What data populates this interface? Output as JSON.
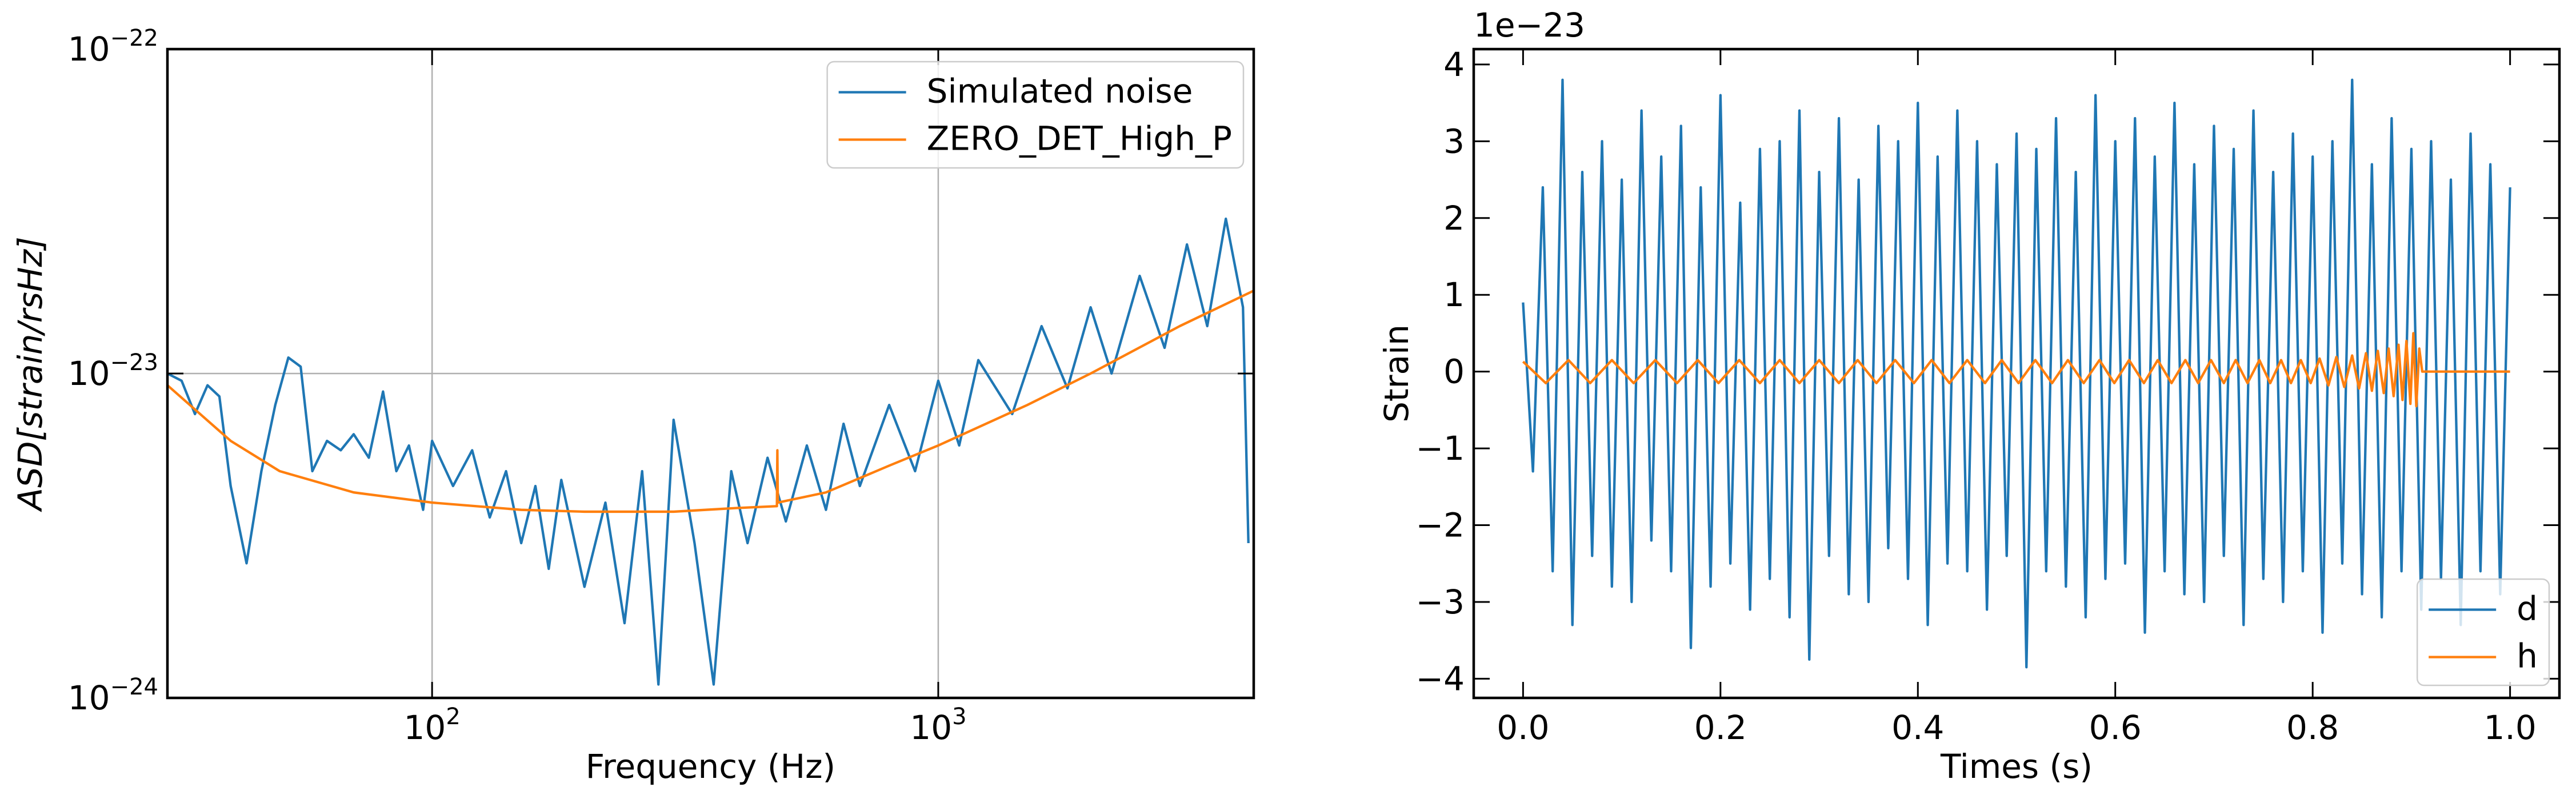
{
  "chart_data": [
    {
      "type": "line",
      "xscale": "log",
      "yscale": "log",
      "grid": true,
      "legend": "upper right",
      "xlabel": "Frequency (Hz)",
      "ylabel": "ASD[strain/rsHz]",
      "xlim": [
        30,
        4200
      ],
      "ylim": [
        1e-24,
        1e-22
      ],
      "xticks": [
        {
          "value": 100,
          "label": "10",
          "exponent": "2"
        },
        {
          "value": 1000,
          "label": "10",
          "exponent": "3"
        }
      ],
      "yticks": [
        {
          "value": 1e-24,
          "label": "10",
          "exponent": "−24"
        },
        {
          "value": 1e-23,
          "label": "10",
          "exponent": "−23"
        },
        {
          "value": 1e-22,
          "label": "10",
          "exponent": "−22"
        }
      ],
      "series": [
        {
          "name": "Simulated noise",
          "color": "#1f77b4",
          "x": [
            30,
            32,
            34,
            36,
            38,
            40,
            43,
            46,
            49,
            52,
            55,
            58,
            62,
            66,
            70,
            75,
            80,
            85,
            90,
            96,
            100,
            110,
            120,
            130,
            140,
            150,
            160,
            170,
            180,
            200,
            220,
            240,
            260,
            280,
            300,
            330,
            360,
            390,
            420,
            460,
            500,
            550,
            600,
            650,
            700,
            800,
            900,
            1000,
            1100,
            1200,
            1400,
            1600,
            1800,
            2000,
            2200,
            2500,
            2800,
            3100,
            3400,
            3700,
            4000,
            4100
          ],
          "values": [
            1e-23,
            9.5e-24,
            7.5e-24,
            9.2e-24,
            8.5e-24,
            4.5e-24,
            2.6e-24,
            5e-24,
            8e-24,
            1.12e-23,
            1.05e-23,
            5e-24,
            6.2e-24,
            5.8e-24,
            6.5e-24,
            5.5e-24,
            8.8e-24,
            5e-24,
            6e-24,
            3.8e-24,
            6.2e-24,
            4.5e-24,
            5.8e-24,
            3.6e-24,
            5e-24,
            3e-24,
            4.5e-24,
            2.5e-24,
            4.7e-24,
            2.2e-24,
            4e-24,
            1.7e-24,
            5e-24,
            1.1e-24,
            7.2e-24,
            3e-24,
            1.1e-24,
            5e-24,
            3e-24,
            5.5e-24,
            3.5e-24,
            6e-24,
            3.8e-24,
            7e-24,
            4.5e-24,
            8e-24,
            5e-24,
            9.5e-24,
            6e-24,
            1.1e-23,
            7.5e-24,
            1.4e-23,
            9e-24,
            1.6e-23,
            1e-23,
            2e-23,
            1.2e-23,
            2.5e-23,
            1.4e-23,
            3e-23,
            1.6e-23,
            3e-24
          ]
        },
        {
          "name": "ZERO_DET_High_P",
          "color": "#ff7f0e",
          "x": [
            30,
            40,
            50,
            70,
            100,
            150,
            200,
            300,
            400,
            480,
            481,
            482,
            600,
            800,
            1000,
            1500,
            2000,
            3000,
            4200
          ],
          "values": [
            9.2e-24,
            6.2e-24,
            5e-24,
            4.3e-24,
            4e-24,
            3.8e-24,
            3.75e-24,
            3.75e-24,
            3.85e-24,
            3.9e-24,
            5.8e-24,
            4e-24,
            4.3e-24,
            5.2e-24,
            6e-24,
            8e-24,
            1e-23,
            1.4e-23,
            1.8e-23
          ]
        }
      ]
    },
    {
      "type": "line",
      "grid": false,
      "legend": "lower right",
      "xlabel": "Times (s)",
      "ylabel": "Strain",
      "offset_label": "1e−23",
      "xlim": [
        -0.05,
        1.05
      ],
      "ylim": [
        -4.25,
        4.2
      ],
      "xticks": [
        {
          "value": 0,
          "label": "0.0"
        },
        0.2,
        0.4,
        0.6,
        0.8,
        {
          "value": 1,
          "label": "1.0"
        }
      ],
      "yticks": [
        {
          "value": -4,
          "label": "−4"
        },
        {
          "value": -3,
          "label": "−3"
        },
        {
          "value": -2,
          "label": "−2"
        },
        {
          "value": -1,
          "label": "−1"
        },
        0,
        1,
        2,
        3,
        4
      ],
      "series": [
        {
          "name": "d",
          "color": "#1f77b4",
          "x": [
            0,
            0.01,
            0.02,
            0.03,
            0.04,
            0.05,
            0.06,
            0.07,
            0.08,
            0.09,
            0.1,
            0.11,
            0.12,
            0.13,
            0.14,
            0.15,
            0.16,
            0.17,
            0.18,
            0.19,
            0.2,
            0.21,
            0.22,
            0.23,
            0.24,
            0.25,
            0.26,
            0.27,
            0.28,
            0.29,
            0.3,
            0.31,
            0.32,
            0.33,
            0.34,
            0.35,
            0.36,
            0.37,
            0.38,
            0.39,
            0.4,
            0.41,
            0.42,
            0.43,
            0.44,
            0.45,
            0.46,
            0.47,
            0.48,
            0.49,
            0.5,
            0.51,
            0.52,
            0.53,
            0.54,
            0.55,
            0.56,
            0.57,
            0.58,
            0.59,
            0.6,
            0.61,
            0.62,
            0.63,
            0.64,
            0.65,
            0.66,
            0.67,
            0.68,
            0.69,
            0.7,
            0.71,
            0.72,
            0.73,
            0.74,
            0.75,
            0.76,
            0.77,
            0.78,
            0.79,
            0.8,
            0.81,
            0.82,
            0.83,
            0.84,
            0.85,
            0.86,
            0.87,
            0.88,
            0.89,
            0.9,
            0.91,
            0.92,
            0.93,
            0.94,
            0.95,
            0.96,
            0.97,
            0.98,
            0.99,
            1.0
          ],
          "values": [
            0.9,
            -1.3,
            2.4,
            -2.6,
            3.8,
            -3.3,
            2.6,
            -2.4,
            3.0,
            -2.8,
            2.5,
            -3.0,
            3.4,
            -2.2,
            2.8,
            -2.6,
            3.2,
            -3.6,
            2.4,
            -2.8,
            3.6,
            -2.5,
            2.2,
            -3.1,
            2.9,
            -2.7,
            3.0,
            -3.2,
            3.4,
            -3.75,
            2.6,
            -2.4,
            3.3,
            -2.9,
            2.5,
            -3.0,
            3.2,
            -2.3,
            3.0,
            -2.7,
            3.5,
            -3.3,
            2.8,
            -2.5,
            3.4,
            -2.6,
            3.0,
            -3.1,
            2.7,
            -2.4,
            3.1,
            -3.85,
            2.9,
            -2.6,
            3.3,
            -2.8,
            2.6,
            -3.2,
            3.6,
            -2.7,
            3.0,
            -2.5,
            3.3,
            -3.4,
            2.8,
            -2.6,
            3.5,
            -2.9,
            2.7,
            -3.0,
            3.2,
            -2.4,
            2.9,
            -3.3,
            3.4,
            -2.7,
            2.6,
            -3.0,
            3.1,
            -2.6,
            2.8,
            -3.4,
            3.0,
            -2.5,
            3.8,
            -2.9,
            2.7,
            -3.2,
            3.3,
            -2.6,
            2.9,
            -3.1,
            3.0,
            -2.7,
            2.5,
            -3.3,
            3.1,
            -2.6,
            2.7,
            -2.9,
            2.4
          ]
        },
        {
          "name": "h",
          "color": "#ff7f0e",
          "x": [
            0,
            0.023,
            0.046,
            0.068,
            0.09,
            0.112,
            0.134,
            0.156,
            0.177,
            0.198,
            0.219,
            0.24,
            0.26,
            0.28,
            0.3,
            0.32,
            0.339,
            0.358,
            0.377,
            0.396,
            0.414,
            0.432,
            0.45,
            0.468,
            0.485,
            0.502,
            0.519,
            0.536,
            0.552,
            0.568,
            0.584,
            0.599,
            0.614,
            0.629,
            0.643,
            0.657,
            0.671,
            0.684,
            0.697,
            0.71,
            0.722,
            0.734,
            0.746,
            0.757,
            0.768,
            0.778,
            0.788,
            0.798,
            0.807,
            0.816,
            0.824,
            0.832,
            0.84,
            0.847,
            0.854,
            0.86,
            0.866,
            0.872,
            0.877,
            0.882,
            0.887,
            0.891,
            0.895,
            0.899,
            0.902,
            0.905,
            0.908,
            0.911,
            1.0
          ],
          "values": [
            0.13,
            -0.15,
            0.15,
            -0.15,
            0.15,
            -0.15,
            0.15,
            -0.15,
            0.15,
            -0.15,
            0.15,
            -0.15,
            0.15,
            -0.15,
            0.15,
            -0.15,
            0.15,
            -0.15,
            0.15,
            -0.15,
            0.15,
            -0.15,
            0.15,
            -0.15,
            0.15,
            -0.15,
            0.15,
            -0.15,
            0.15,
            -0.15,
            0.15,
            -0.15,
            0.15,
            -0.15,
            0.15,
            -0.15,
            0.15,
            -0.15,
            0.15,
            -0.15,
            0.15,
            -0.15,
            0.15,
            -0.15,
            0.15,
            -0.15,
            0.15,
            -0.15,
            0.17,
            -0.18,
            0.19,
            -0.2,
            0.21,
            -0.22,
            0.24,
            -0.25,
            0.27,
            -0.28,
            0.3,
            -0.32,
            0.35,
            -0.37,
            0.4,
            -0.42,
            0.5,
            -0.45,
            0.3,
            0,
            0
          ]
        }
      ]
    }
  ]
}
